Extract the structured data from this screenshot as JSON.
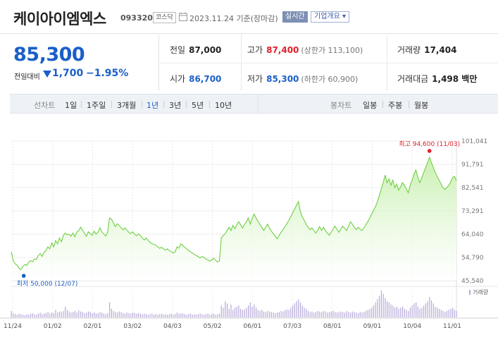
{
  "header": {
    "name": "케이아이엠엑스",
    "code": "093320",
    "market": "코스닥",
    "date": "2023.11.24 기준(장마감)",
    "live": "실시간",
    "info": "기업개요 ▾"
  },
  "price": {
    "current": "85,300",
    "change_label": "전일대비",
    "change": "1,700",
    "change_pct": "−1.95%"
  },
  "stats": {
    "prev": {
      "k": "전일",
      "v": "87,000"
    },
    "high": {
      "k": "고가",
      "v": "87,400",
      "s": "(상한가 113,100)"
    },
    "volume": {
      "k": "거래량",
      "v": "17,404"
    },
    "open": {
      "k": "시가",
      "v": "86,700"
    },
    "low": {
      "k": "저가",
      "v": "85,300",
      "s": "(하한가 60,900)"
    },
    "amount": {
      "k": "거래대금",
      "v": "1,498 백만"
    }
  },
  "period_bar": {
    "line_label": "선차트",
    "line_opts": [
      "1일",
      "1주일",
      "3개월",
      "1년",
      "3년",
      "5년",
      "10년"
    ],
    "active": "1년",
    "candle_label": "봉차트",
    "candle_opts": [
      "일봉",
      "주봉",
      "월봉"
    ]
  },
  "chart_data": {
    "type": "area",
    "x_ticks": [
      "11/24",
      "01/02",
      "02/01",
      "03/02",
      "04/03",
      "05/02",
      "06/01",
      "07/03",
      "08/01",
      "09/01",
      "10/04",
      "11/01"
    ],
    "y_ticks": [
      "101,041",
      "91,791",
      "82,541",
      "73,291",
      "64,040",
      "54,790",
      "45,540"
    ],
    "ylim": [
      45540,
      101041
    ],
    "high_label": "최고 94,600 (11/03)",
    "high_value": 94600,
    "low_label": "최저 50,000 (12/07)",
    "low_value": 50000,
    "volume_legend": "거래량",
    "colors": {
      "line": "#6fcf45",
      "fill_top": "#c9f0b0",
      "fill_bottom": "#ffffff",
      "volume": "#b8a9d9",
      "high": "#e0202a",
      "low": "#1a5fc8"
    },
    "values": [
      57000,
      53500,
      52200,
      51800,
      50500,
      50000,
      51200,
      52000,
      51600,
      52800,
      53500,
      53000,
      54200,
      54000,
      55500,
      56300,
      55200,
      56800,
      57500,
      59000,
      58200,
      60500,
      59000,
      61500,
      60200,
      62500,
      61000,
      63500,
      64500,
      63800,
      64000,
      63200,
      64500,
      63000,
      64800,
      65500,
      66800,
      65600,
      64300,
      63200,
      65000,
      64200,
      63600,
      65200,
      64000,
      64800,
      66500,
      65000,
      64100,
      63300,
      64800,
      70500,
      70000,
      68500,
      67000,
      68200,
      67500,
      66600,
      65800,
      66500,
      65600,
      64800,
      64200,
      65000,
      64000,
      63400,
      64200,
      63500,
      62500,
      61700,
      62500,
      61600,
      60800,
      60200,
      60000,
      59600,
      59000,
      58400,
      58800,
      58200,
      57700,
      58200,
      57500,
      57100,
      56500,
      57000,
      59000,
      58500,
      60200,
      59500,
      58800,
      58200,
      57600,
      57100,
      56500,
      56000,
      55600,
      55100,
      54600,
      55200,
      54700,
      54200,
      53800,
      53300,
      53800,
      54400,
      53700,
      53000,
      53400,
      62500,
      63500,
      64200,
      65500,
      66800,
      65500,
      67500,
      66200,
      67800,
      69000,
      67800,
      66500,
      67800,
      69000,
      70500,
      68000,
      70200,
      72000,
      70500,
      69200,
      68000,
      66800,
      65500,
      66800,
      68000,
      66500,
      65200,
      64200,
      63200,
      62200,
      63500,
      64800,
      65800,
      67000,
      68200,
      69500,
      71000,
      72500,
      74000,
      75500,
      77000,
      73000,
      71000,
      69500,
      68000,
      66800,
      65800,
      66500,
      65500,
      64500,
      65500,
      67000,
      65500,
      66800,
      65500,
      64500,
      63600,
      64800,
      66000,
      67200,
      66000,
      64800,
      66000,
      67200,
      66300,
      65500,
      67200,
      69000,
      68000,
      66800,
      65800,
      66800,
      66000,
      65500,
      66500,
      67800,
      69000,
      70500,
      72000,
      73500,
      75000,
      77000,
      79500,
      82000,
      84500,
      87500,
      84500,
      86000,
      83500,
      85500,
      82500,
      84000,
      81500,
      82800,
      84500,
      83500,
      82000,
      80500,
      83500,
      85500,
      88000,
      89500,
      86500,
      84500,
      86500,
      88500,
      90500,
      92500,
      94600,
      92500,
      90500,
      88500,
      87000,
      85500,
      84000,
      82500,
      81800,
      82600,
      83400,
      84800,
      86600,
      87000,
      85300
    ],
    "volume": [
      12,
      8,
      6,
      5,
      7,
      6,
      5,
      4,
      6,
      5,
      7,
      8,
      6,
      5,
      7,
      9,
      6,
      7,
      8,
      10,
      7,
      9,
      8,
      14,
      9,
      11,
      10,
      12,
      20,
      14,
      11,
      9,
      10,
      12,
      9,
      13,
      11,
      10,
      8,
      9,
      11,
      10,
      8,
      9,
      7,
      8,
      10,
      9,
      7,
      6,
      8,
      28,
      16,
      12,
      10,
      9,
      11,
      10,
      8,
      7,
      9,
      8,
      7,
      9,
      8,
      7,
      8,
      7,
      6,
      7,
      6,
      5,
      6,
      7,
      5,
      6,
      5,
      6,
      7,
      5,
      6,
      5,
      6,
      7,
      5,
      6,
      9,
      7,
      8,
      7,
      6,
      5,
      6,
      7,
      5,
      6,
      5,
      6,
      7,
      6,
      5,
      6,
      7,
      5,
      6,
      7,
      5,
      6,
      7,
      22,
      18,
      30,
      26,
      16,
      24,
      14,
      18,
      20,
      22,
      16,
      14,
      15,
      18,
      22,
      28,
      20,
      24,
      18,
      14,
      12,
      14,
      11,
      10,
      12,
      11,
      10,
      9,
      8,
      9,
      10,
      12,
      11,
      13,
      15,
      14,
      18,
      22,
      26,
      30,
      34,
      28,
      22,
      18,
      16,
      12,
      10,
      11,
      9,
      10,
      12,
      11,
      10,
      12,
      11,
      9,
      10,
      11,
      12,
      10,
      9,
      10,
      11,
      10,
      9,
      12,
      10,
      9,
      11,
      10,
      9,
      8,
      10,
      9,
      10,
      12,
      14,
      16,
      18,
      22,
      28,
      34,
      40,
      50,
      44,
      36,
      30,
      28,
      24,
      22,
      18,
      20,
      16,
      18,
      20,
      16,
      14,
      12,
      18,
      22,
      26,
      28,
      20,
      16,
      18,
      22,
      26,
      30,
      38,
      32,
      26,
      20,
      18,
      16,
      14,
      12,
      10,
      12,
      14,
      16,
      18,
      14,
      12
    ]
  }
}
